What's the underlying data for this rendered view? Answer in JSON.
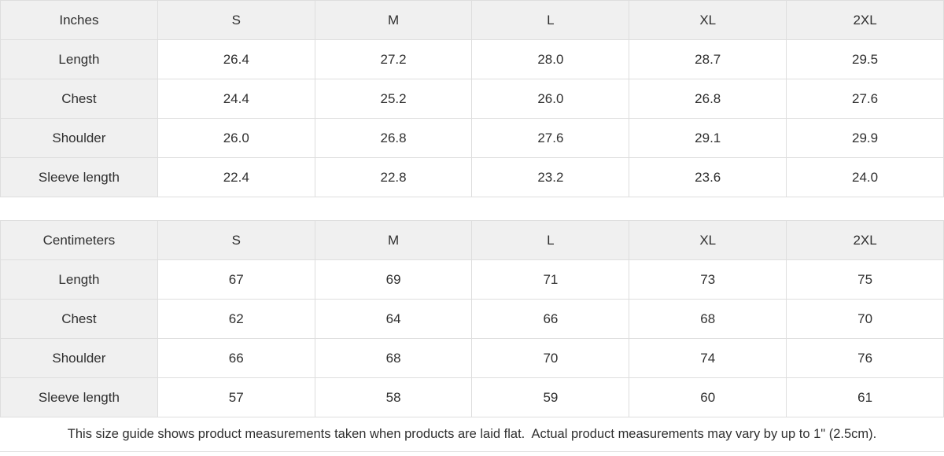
{
  "tables": [
    {
      "unit_label": "Inches",
      "columns": [
        "S",
        "M",
        "L",
        "XL",
        "2XL"
      ],
      "rows": [
        {
          "label": "Length",
          "values": [
            "26.4",
            "27.2",
            "28.0",
            "28.7",
            "29.5"
          ]
        },
        {
          "label": "Chest",
          "values": [
            "24.4",
            "25.2",
            "26.0",
            "26.8",
            "27.6"
          ]
        },
        {
          "label": "Shoulder",
          "values": [
            "26.0",
            "26.8",
            "27.6",
            "29.1",
            "29.9"
          ]
        },
        {
          "label": "Sleeve length",
          "values": [
            "22.4",
            "22.8",
            "23.2",
            "23.6",
            "24.0"
          ]
        }
      ]
    },
    {
      "unit_label": "Centimeters",
      "columns": [
        "S",
        "M",
        "L",
        "XL",
        "2XL"
      ],
      "rows": [
        {
          "label": "Length",
          "values": [
            "67",
            "69",
            "71",
            "73",
            "75"
          ]
        },
        {
          "label": "Chest",
          "values": [
            "62",
            "64",
            "66",
            "68",
            "70"
          ]
        },
        {
          "label": "Shoulder",
          "values": [
            "66",
            "68",
            "70",
            "74",
            "76"
          ]
        },
        {
          "label": "Sleeve length",
          "values": [
            "57",
            "58",
            "59",
            "60",
            "61"
          ]
        }
      ]
    }
  ],
  "footer": {
    "note": "This size guide shows product measurements taken when products are laid flat.  Actual product measurements may vary by up to 1\" (2.5cm)."
  },
  "colors": {
    "header_bg": "#f0f0f0",
    "border": "#dedede",
    "text": "#2f2f2f",
    "background": "#ffffff"
  }
}
